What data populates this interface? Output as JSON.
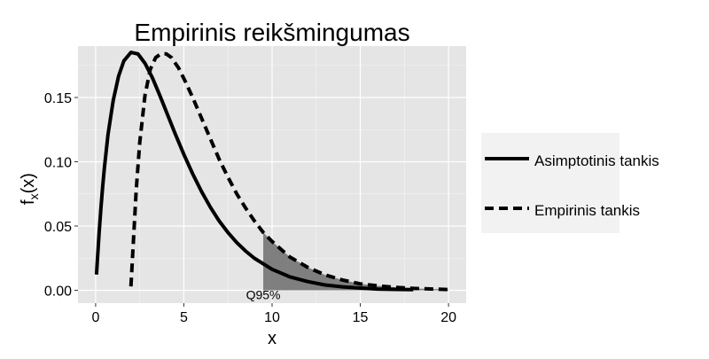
{
  "chart_data": {
    "type": "line",
    "title": "Empirinis reikšmingumas",
    "xlabel": "x",
    "ylabel_base": "f",
    "ylabel_sub": "x",
    "ylabel_tail": "(x)",
    "xlim": [
      -1,
      21
    ],
    "ylim": [
      -0.01,
      0.19
    ],
    "x_ticks": [
      0,
      5,
      10,
      15,
      20
    ],
    "x_tick_labels": [
      "0",
      "5",
      "10",
      "15",
      "20"
    ],
    "y_ticks": [
      0,
      0.05,
      0.1,
      0.15
    ],
    "y_tick_labels": [
      "0.00",
      "0.05",
      "0.10",
      "0.15"
    ],
    "grid": true,
    "panel_color": "#e5e5e5",
    "grid_color": "#ffffff",
    "legend_position": "right",
    "legend": {
      "items": [
        {
          "label": "Asimptotinis tankis",
          "style": "solid"
        },
        {
          "label": "Empirinis tankis",
          "style": "dashed"
        }
      ]
    },
    "series": [
      {
        "name": "Asimptotinis tankis",
        "style": "solid",
        "x": [
          0.05,
          0.1,
          0.2,
          0.3,
          0.4,
          0.5,
          0.7,
          1,
          1.3,
          1.6,
          2,
          2.4,
          2.8,
          3.2,
          3.6,
          4,
          4.5,
          5,
          5.5,
          6,
          6.5,
          7,
          7.5,
          8,
          8.5,
          9,
          10,
          11,
          12,
          13,
          14,
          15,
          16,
          17,
          18
        ],
        "y": [
          0.005,
          0.0097,
          0.0185,
          0.0262,
          0.0331,
          0.0392,
          0.0496,
          0.0606,
          0.0682,
          0.0731,
          0.0758,
          0.0753,
          0.0723,
          0.0679,
          0.0626,
          0.057,
          0.05,
          0.0433,
          0.0371,
          0.0315,
          0.0265,
          0.0221,
          0.0184,
          0.0152,
          0.0125,
          0.0102,
          0.0067,
          0.0043,
          0.0028,
          0.0017,
          0.0011,
          0.0007,
          0.0004,
          0.0003,
          0.0002
        ],
        "y_scale": 2.442
      },
      {
        "name": "Empirinis tankis",
        "style": "dashed",
        "x": [
          2,
          2.1,
          2.3,
          2.5,
          2.8,
          3.1,
          3.4,
          3.7,
          4,
          4.3,
          4.7,
          5.1,
          5.5,
          6,
          6.5,
          7,
          7.5,
          8,
          8.5,
          9,
          9.5,
          10,
          11,
          12,
          13,
          14,
          15,
          16,
          17,
          18,
          19,
          20
        ],
        "y": [
          0.003,
          0.028,
          0.078,
          0.115,
          0.152,
          0.172,
          0.181,
          0.184,
          0.184,
          0.181,
          0.173,
          0.162,
          0.15,
          0.134,
          0.118,
          0.102,
          0.088,
          0.075,
          0.064,
          0.054,
          0.045,
          0.038,
          0.026,
          0.018,
          0.012,
          0.008,
          0.005,
          0.0035,
          0.0023,
          0.0015,
          0.001,
          0.0006
        ]
      }
    ],
    "shaded_region": {
      "label": "Q95%",
      "x_start": 9.5,
      "fill": "#7f7f7f"
    }
  }
}
